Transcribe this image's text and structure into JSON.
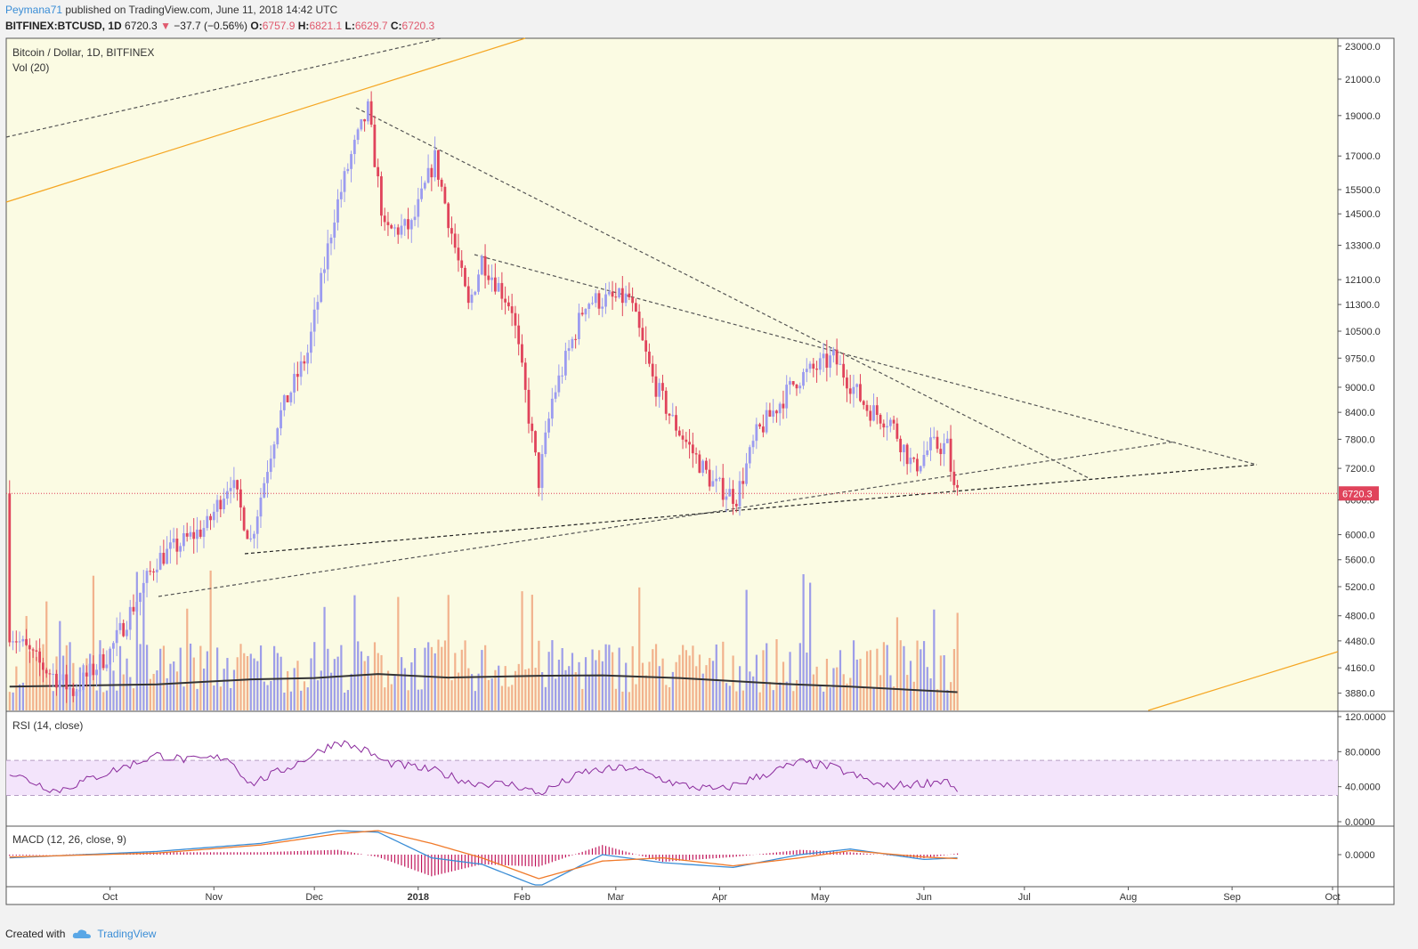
{
  "header": {
    "author": "Peymana71",
    "published_text": " published on TradingView.com, June 11, 2018 14:42 UTC",
    "symbol": "BITFINEX:BTCUSD, 1D",
    "last": "6720.3",
    "change": "−37.7 (−0.56%)",
    "open_label": "O:",
    "open": "6757.9",
    "high_label": "H:",
    "high": "6821.1",
    "low_label": "L:",
    "low": "6629.7",
    "close_label": "C:",
    "close": "6720.3"
  },
  "colors": {
    "up": "#9b9bf0",
    "down": "#e0435b",
    "up_volume": "#8c8cea",
    "down_volume": "#f0a57e",
    "rsi": "#8a2a9c",
    "macd": "#3a8dd6",
    "signal": "#f07a2a",
    "hist": "#c0155a",
    "background": "#fbfbe3",
    "trend_orange": "#f5a623"
  },
  "footer": {
    "created_with": "Created with",
    "brand": "TradingView"
  },
  "chart_data": [
    {
      "type": "candlestick",
      "title": "Bitcoin / Dollar, 1D, BITFINEX",
      "volume_label": "Vol (20)",
      "scale": "log",
      "ylim": [
        3700,
        23500
      ],
      "y_ticks": [
        "23000.0",
        "21000.0",
        "19000.0",
        "17000.0",
        "15500.0",
        "14500.0",
        "13300.0",
        "12100.0",
        "11300.0",
        "10500.0",
        "9750.0",
        "9000.0",
        "8400.0",
        "7800.0",
        "7200.0",
        "6600.0",
        "6000.0",
        "5600.0",
        "5200.0",
        "4800.0",
        "4480.0",
        "4160.0",
        "3880.0"
      ],
      "x_ticks": [
        "Oct",
        "Nov",
        "Dec",
        "2018",
        "Feb",
        "Mar",
        "Apr",
        "May",
        "Jun",
        "Jul",
        "Aug",
        "Sep",
        "Oct"
      ],
      "current_price_label": "6720.3",
      "close_series": {
        "dates": [
          "2017-09-01",
          "2017-09-10",
          "2017-09-20",
          "2017-10-01",
          "2017-10-15",
          "2017-10-30",
          "2017-11-06",
          "2017-11-12",
          "2017-11-20",
          "2017-11-29",
          "2017-12-07",
          "2017-12-12",
          "2017-12-17",
          "2017-12-22",
          "2017-12-30",
          "2018-01-06",
          "2018-01-16",
          "2018-01-20",
          "2018-01-29",
          "2018-02-06",
          "2018-02-10",
          "2018-02-20",
          "2018-03-05",
          "2018-03-12",
          "2018-03-18",
          "2018-03-30",
          "2018-04-06",
          "2018-04-12",
          "2018-04-24",
          "2018-05-05",
          "2018-05-15",
          "2018-05-22",
          "2018-05-29",
          "2018-06-03",
          "2018-06-08",
          "2018-06-10",
          "2018-06-11"
        ],
        "close": [
          4600,
          4200,
          3900,
          4350,
          5600,
          6150,
          7000,
          5900,
          8200,
          9900,
          14500,
          17000,
          19300,
          13800,
          14000,
          16900,
          11200,
          12800,
          11200,
          6950,
          8700,
          11400,
          11500,
          9200,
          8200,
          6900,
          6650,
          7900,
          9200,
          9750,
          8500,
          8200,
          7200,
          7650,
          7650,
          6780,
          6720.3
        ]
      },
      "volume_ma": {
        "dates": [
          "2017-09-01",
          "2017-10-15",
          "2017-11-12",
          "2017-12-01",
          "2017-12-20",
          "2018-01-10",
          "2018-02-06",
          "2018-02-25",
          "2018-03-20",
          "2018-04-20",
          "2018-05-10",
          "2018-06-11"
        ],
        "values": [
          3950,
          3975,
          4030,
          4045,
          4090,
          4050,
          4070,
          4075,
          4045,
          3980,
          3950,
          3890
        ]
      },
      "trendlines": [
        "upper orange channel",
        "lower orange channel",
        "descending dashed resistance from Dec high",
        "descending dashed resistance from Jan",
        "ascending dashed support from Nov",
        "ascending dashed support from Nov lows",
        "outer dashed channel"
      ]
    },
    {
      "type": "line",
      "title": "RSI (14, close)",
      "ylim": [
        0,
        120
      ],
      "y_ticks": [
        "120.0000",
        "80.0000",
        "40.0000",
        "0.0000"
      ],
      "band": [
        30,
        70
      ],
      "dates": [
        "2017-09-01",
        "2017-09-15",
        "2017-10-01",
        "2017-10-15",
        "2017-10-25",
        "2017-11-05",
        "2017-11-12",
        "2017-11-25",
        "2017-12-08",
        "2017-12-17",
        "2017-12-22",
        "2018-01-06",
        "2018-01-16",
        "2018-01-30",
        "2018-02-06",
        "2018-02-20",
        "2018-03-05",
        "2018-03-20",
        "2018-04-01",
        "2018-04-25",
        "2018-05-05",
        "2018-05-20",
        "2018-06-01",
        "2018-06-08",
        "2018-06-11"
      ],
      "values": [
        56,
        35,
        57,
        76,
        70,
        74,
        43,
        65,
        92,
        80,
        68,
        58,
        45,
        42,
        32,
        57,
        62,
        42,
        36,
        68,
        62,
        40,
        44,
        48,
        33
      ]
    },
    {
      "type": "line",
      "title": "MACD (12, 26, close, 9)",
      "y_ticks": [
        "0.0000"
      ],
      "dates": [
        "2017-09-01",
        "2017-10-15",
        "2017-11-15",
        "2017-12-08",
        "2017-12-20",
        "2018-01-05",
        "2018-01-20",
        "2018-02-06",
        "2018-02-25",
        "2018-03-15",
        "2018-04-05",
        "2018-04-25",
        "2018-05-10",
        "2018-06-01",
        "2018-06-11"
      ],
      "macd": [
        -200,
        200,
        700,
        1500,
        1400,
        -200,
        -600,
        -2000,
        0,
        -500,
        -800,
        0,
        350,
        -300,
        -200
      ],
      "signal": [
        -150,
        100,
        600,
        1300,
        1500,
        700,
        -200,
        -1500,
        -400,
        -200,
        -700,
        -200,
        250,
        -150,
        -250
      ]
    }
  ]
}
